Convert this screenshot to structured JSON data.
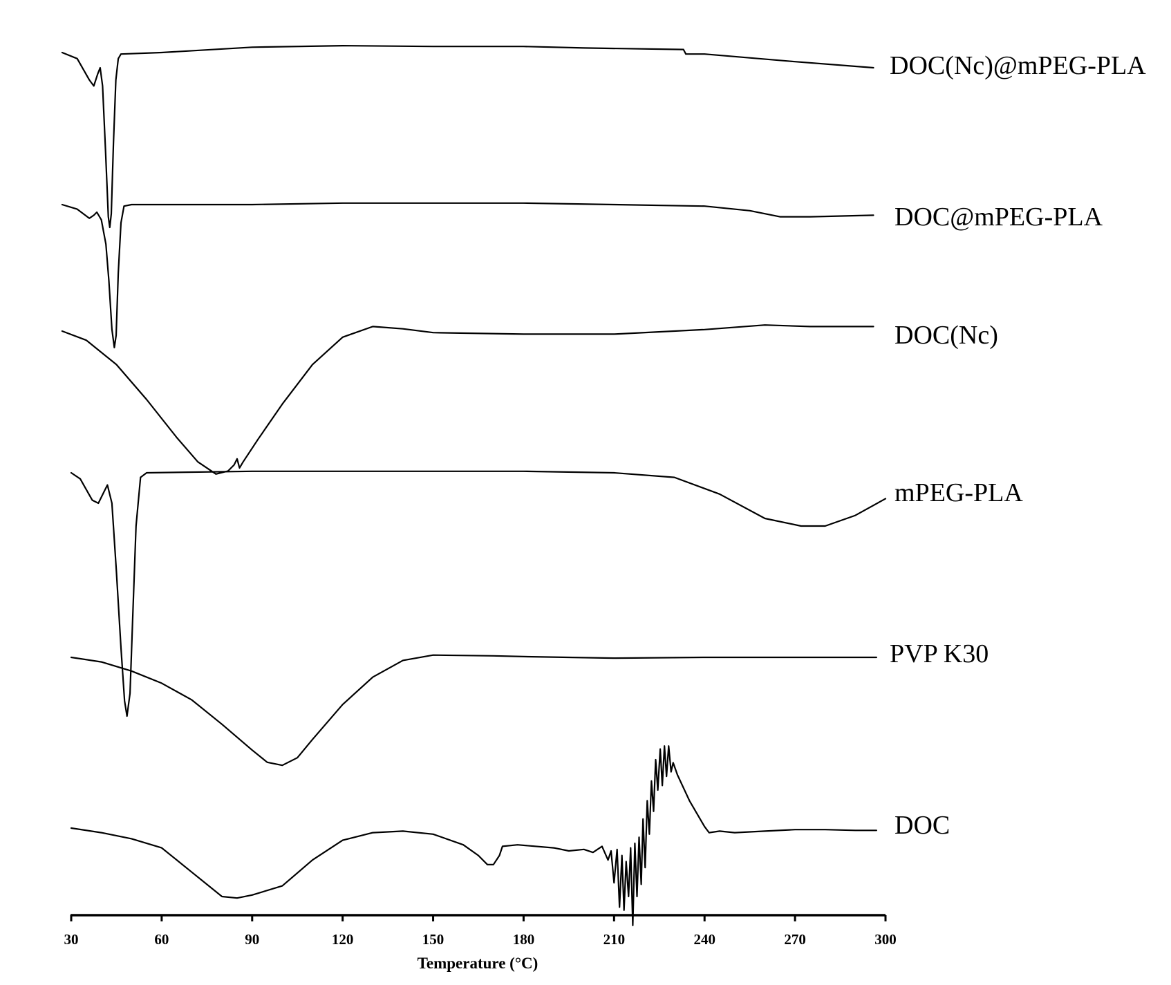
{
  "chart_data": {
    "type": "line",
    "title": "",
    "xlabel": "Temperature (°C)",
    "ylabel": "",
    "xlim": [
      30,
      300
    ],
    "x_ticks": [
      30,
      60,
      90,
      120,
      150,
      180,
      210,
      240,
      270,
      300
    ],
    "grid": false,
    "legend": "labels at right end of each curve",
    "line_color": "#000000",
    "series": [
      {
        "name": "DOC(Nc)@mPEG-PLA",
        "points": [
          [
            27,
            0.0
          ],
          [
            32,
            -0.4
          ],
          [
            36,
            -1.8
          ],
          [
            37.5,
            -2.2
          ],
          [
            38.8,
            -1.4
          ],
          [
            39.6,
            -1.0
          ],
          [
            40.4,
            -2.2
          ],
          [
            41.4,
            -6.5
          ],
          [
            42.3,
            -10.8
          ],
          [
            42.8,
            -11.5
          ],
          [
            43.3,
            -10.6
          ],
          [
            44.0,
            -6.0
          ],
          [
            44.8,
            -1.8
          ],
          [
            45.6,
            -0.4
          ],
          [
            46.5,
            -0.1
          ],
          [
            60,
            0.0
          ],
          [
            90,
            0.35
          ],
          [
            120,
            0.45
          ],
          [
            150,
            0.4
          ],
          [
            180,
            0.4
          ],
          [
            200,
            0.3
          ],
          [
            233,
            0.2
          ],
          [
            233.8,
            -0.1
          ],
          [
            240,
            -0.1
          ],
          [
            270,
            -0.6
          ],
          [
            296,
            -1.0
          ]
        ]
      },
      {
        "name": "DOC@mPEG-PLA",
        "points": [
          [
            27,
            0.0
          ],
          [
            32,
            -0.3
          ],
          [
            36,
            -0.9
          ],
          [
            37.5,
            -0.7
          ],
          [
            38.5,
            -0.5
          ],
          [
            40,
            -1.0
          ],
          [
            41.5,
            -2.6
          ],
          [
            42.5,
            -5.0
          ],
          [
            43.5,
            -8.2
          ],
          [
            44.3,
            -9.4
          ],
          [
            44.9,
            -8.6
          ],
          [
            45.6,
            -4.5
          ],
          [
            46.5,
            -1.2
          ],
          [
            47.5,
            -0.1
          ],
          [
            50,
            0.0
          ],
          [
            90,
            0.0
          ],
          [
            120,
            0.1
          ],
          [
            150,
            0.1
          ],
          [
            180,
            0.1
          ],
          [
            210,
            0.0
          ],
          [
            240,
            -0.1
          ],
          [
            255,
            -0.4
          ],
          [
            265,
            -0.8
          ],
          [
            275,
            -0.8
          ],
          [
            296,
            -0.7
          ]
        ]
      },
      {
        "name": "DOC(Nc)",
        "points": [
          [
            27,
            0.0
          ],
          [
            35,
            -0.6
          ],
          [
            45,
            -2.2
          ],
          [
            55,
            -4.5
          ],
          [
            65,
            -7.0
          ],
          [
            72,
            -8.6
          ],
          [
            78,
            -9.4
          ],
          [
            82,
            -9.2
          ],
          [
            84,
            -8.8
          ],
          [
            85,
            -8.4
          ],
          [
            85.8,
            -9.0
          ],
          [
            87,
            -8.6
          ],
          [
            92,
            -7.1
          ],
          [
            100,
            -4.8
          ],
          [
            110,
            -2.2
          ],
          [
            120,
            -0.4
          ],
          [
            130,
            0.3
          ],
          [
            140,
            0.15
          ],
          [
            150,
            -0.1
          ],
          [
            180,
            -0.2
          ],
          [
            210,
            -0.2
          ],
          [
            240,
            0.1
          ],
          [
            260,
            0.4
          ],
          [
            275,
            0.3
          ],
          [
            296,
            0.3
          ]
        ]
      },
      {
        "name": "mPEG-PLA",
        "points": [
          [
            30,
            0.0
          ],
          [
            33,
            -0.4
          ],
          [
            37,
            -1.8
          ],
          [
            39,
            -2.0
          ],
          [
            41,
            -1.2
          ],
          [
            42,
            -0.8
          ],
          [
            43.5,
            -2.0
          ],
          [
            45,
            -6.5
          ],
          [
            46.5,
            -11.5
          ],
          [
            47.7,
            -15.0
          ],
          [
            48.5,
            -16.0
          ],
          [
            49.5,
            -14.5
          ],
          [
            50.5,
            -9.0
          ],
          [
            51.5,
            -3.5
          ],
          [
            53,
            -0.3
          ],
          [
            55,
            0.0
          ],
          [
            90,
            0.1
          ],
          [
            120,
            0.1
          ],
          [
            150,
            0.1
          ],
          [
            180,
            0.1
          ],
          [
            210,
            0.0
          ],
          [
            230,
            -0.3
          ],
          [
            245,
            -1.4
          ],
          [
            260,
            -3.0
          ],
          [
            272,
            -3.5
          ],
          [
            280,
            -3.5
          ],
          [
            290,
            -2.8
          ],
          [
            300,
            -1.7
          ]
        ]
      },
      {
        "name": "PVP K30",
        "points": [
          [
            30,
            0.0
          ],
          [
            40,
            -0.3
          ],
          [
            50,
            -0.9
          ],
          [
            60,
            -1.7
          ],
          [
            70,
            -2.8
          ],
          [
            80,
            -4.4
          ],
          [
            90,
            -6.1
          ],
          [
            95,
            -6.9
          ],
          [
            100,
            -7.1
          ],
          [
            105,
            -6.6
          ],
          [
            110,
            -5.4
          ],
          [
            120,
            -3.1
          ],
          [
            130,
            -1.3
          ],
          [
            140,
            -0.2
          ],
          [
            150,
            0.15
          ],
          [
            170,
            0.1
          ],
          [
            180,
            0.05
          ],
          [
            210,
            -0.05
          ],
          [
            240,
            0.0
          ],
          [
            270,
            0.0
          ],
          [
            297,
            0.0
          ]
        ]
      },
      {
        "name": "DOC",
        "points": [
          [
            30,
            0.0
          ],
          [
            40,
            -0.3
          ],
          [
            50,
            -0.7
          ],
          [
            60,
            -1.3
          ],
          [
            70,
            -2.9
          ],
          [
            80,
            -4.5
          ],
          [
            85,
            -4.6
          ],
          [
            90,
            -4.4
          ],
          [
            100,
            -3.8
          ],
          [
            110,
            -2.1
          ],
          [
            120,
            -0.8
          ],
          [
            130,
            -0.3
          ],
          [
            140,
            -0.2
          ],
          [
            150,
            -0.4
          ],
          [
            160,
            -1.1
          ],
          [
            165,
            -1.8
          ],
          [
            168,
            -2.4
          ],
          [
            170,
            -2.4
          ],
          [
            172,
            -1.8
          ],
          [
            173,
            -1.2
          ],
          [
            178,
            -1.1
          ],
          [
            190,
            -1.3
          ],
          [
            195,
            -1.5
          ],
          [
            200,
            -1.4
          ],
          [
            203,
            -1.6
          ],
          [
            206,
            -1.2
          ],
          [
            208,
            -2.1
          ],
          [
            209,
            -1.5
          ],
          [
            210,
            -3.6
          ],
          [
            211,
            -1.4
          ],
          [
            211.8,
            -5.2
          ],
          [
            212.6,
            -1.8
          ],
          [
            213.3,
            -5.4
          ],
          [
            214.0,
            -2.2
          ],
          [
            214.8,
            -4.5
          ],
          [
            215.5,
            -1.3
          ],
          [
            216.2,
            -6.4
          ],
          [
            216.9,
            -1.0
          ],
          [
            217.6,
            -4.5
          ],
          [
            218.3,
            -0.6
          ],
          [
            219.0,
            -3.7
          ],
          [
            219.6,
            0.6
          ],
          [
            220.3,
            -2.6
          ],
          [
            221.0,
            1.8
          ],
          [
            221.7,
            -0.4
          ],
          [
            222.4,
            3.1
          ],
          [
            223.1,
            1.1
          ],
          [
            223.8,
            4.5
          ],
          [
            224.5,
            2.5
          ],
          [
            225.3,
            5.2
          ],
          [
            226.0,
            2.8
          ],
          [
            226.7,
            5.4
          ],
          [
            227.4,
            3.4
          ],
          [
            228.1,
            5.4
          ],
          [
            228.9,
            3.7
          ],
          [
            229.6,
            4.3
          ],
          [
            231,
            3.5
          ],
          [
            235,
            1.8
          ],
          [
            240,
            0.1
          ],
          [
            241.5,
            -0.3
          ],
          [
            245,
            -0.2
          ],
          [
            250,
            -0.3
          ],
          [
            260,
            -0.2
          ],
          [
            270,
            -0.1
          ],
          [
            280,
            -0.1
          ],
          [
            290,
            -0.15
          ],
          [
            297,
            -0.15
          ]
        ]
      }
    ]
  }
}
